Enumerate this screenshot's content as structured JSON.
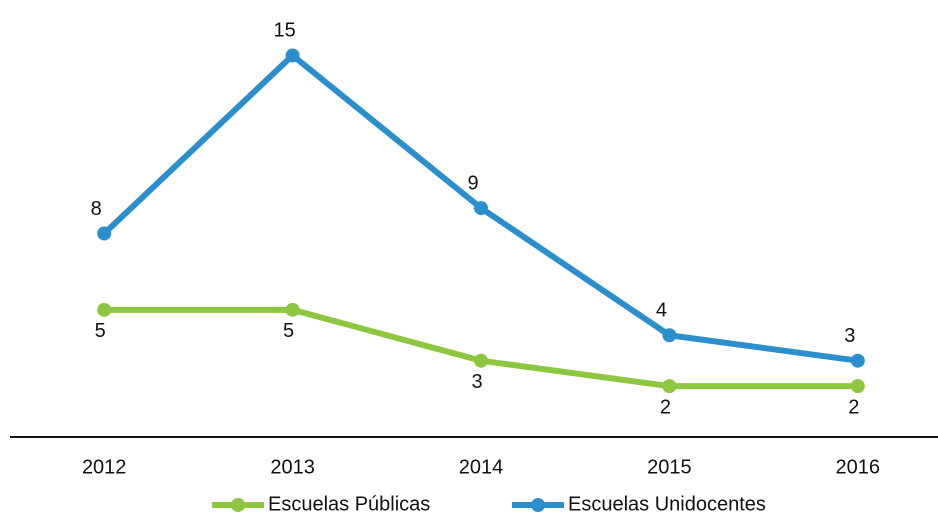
{
  "chart_data": {
    "type": "line",
    "categories": [
      "2012",
      "2013",
      "2014",
      "2015",
      "2016"
    ],
    "series": [
      {
        "name": "Escuelas Públicas",
        "color": "#8dc63f",
        "values": [
          5,
          5,
          3,
          2,
          2
        ]
      },
      {
        "name": "Escuelas Unidocentes",
        "color": "#2b8fce",
        "values": [
          8,
          15,
          9,
          4,
          3
        ]
      }
    ],
    "ylim": [
      0,
      16
    ]
  }
}
